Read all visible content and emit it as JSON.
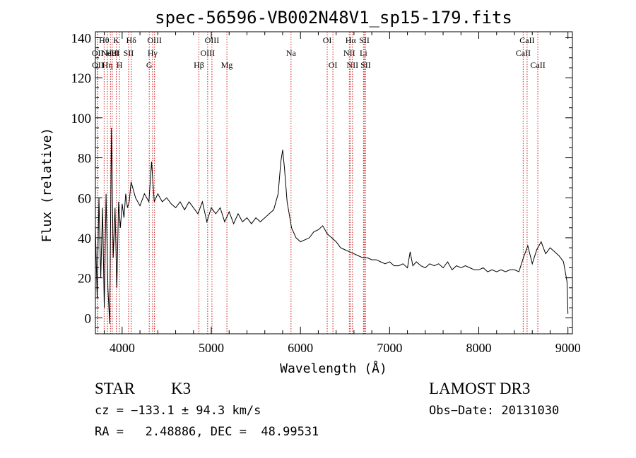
{
  "chart_data": {
    "type": "line",
    "title": "spec-56596-VB002N48V1_sp15-179.fits",
    "xlabel": "Wavelength (Å)",
    "ylabel": "Flux (relative)",
    "xlim": [
      3700,
      9050
    ],
    "ylim": [
      -8,
      143
    ],
    "x_ticks": [
      4000,
      5000,
      6000,
      7000,
      8000,
      9000
    ],
    "y_ticks": [
      0,
      20,
      40,
      60,
      80,
      100,
      120,
      140
    ],
    "grid": false,
    "series": [
      {
        "name": "flux",
        "x": [
          3700,
          3720,
          3740,
          3760,
          3780,
          3800,
          3820,
          3840,
          3860,
          3880,
          3900,
          3920,
          3940,
          3960,
          3980,
          4000,
          4020,
          4040,
          4060,
          4080,
          4100,
          4150,
          4200,
          4250,
          4300,
          4330,
          4360,
          4400,
          4450,
          4500,
          4550,
          4600,
          4650,
          4700,
          4750,
          4800,
          4850,
          4900,
          4950,
          5000,
          5050,
          5100,
          5150,
          5200,
          5250,
          5300,
          5350,
          5400,
          5450,
          5500,
          5550,
          5600,
          5650,
          5700,
          5750,
          5780,
          5800,
          5820,
          5850,
          5900,
          5950,
          6000,
          6050,
          6100,
          6150,
          6200,
          6250,
          6300,
          6350,
          6400,
          6450,
          6500,
          6550,
          6600,
          6650,
          6700,
          6750,
          6800,
          6850,
          6900,
          6950,
          7000,
          7050,
          7100,
          7150,
          7200,
          7230,
          7260,
          7300,
          7350,
          7400,
          7450,
          7500,
          7550,
          7600,
          7650,
          7700,
          7750,
          7800,
          7850,
          7900,
          7950,
          8000,
          8050,
          8100,
          8150,
          8200,
          8250,
          8300,
          8350,
          8400,
          8450,
          8500,
          8550,
          8600,
          8650,
          8700,
          8750,
          8800,
          8850,
          8900,
          8950,
          8990,
          9000
        ],
        "values": [
          45,
          10,
          60,
          20,
          55,
          5,
          62,
          15,
          -3,
          95,
          30,
          55,
          15,
          58,
          45,
          57,
          50,
          62,
          55,
          58,
          68,
          60,
          56,
          62,
          58,
          78,
          58,
          62,
          58,
          60,
          57,
          55,
          58,
          54,
          58,
          55,
          52,
          58,
          48,
          55,
          52,
          55,
          48,
          53,
          47,
          52,
          48,
          50,
          47,
          50,
          48,
          50,
          52,
          54,
          62,
          78,
          84,
          75,
          58,
          45,
          40,
          38,
          39,
          40,
          43,
          44,
          46,
          42,
          40,
          38,
          35,
          34,
          33,
          32,
          31,
          30,
          30,
          29,
          29,
          28,
          27,
          28,
          26,
          26,
          27,
          25,
          33,
          26,
          28,
          26,
          25,
          27,
          26,
          27,
          25,
          28,
          24,
          26,
          25,
          26,
          25,
          24,
          24,
          25,
          23,
          24,
          23,
          24,
          23,
          24,
          24,
          23,
          30,
          36,
          27,
          34,
          38,
          32,
          35,
          33,
          31,
          28,
          18,
          2
        ]
      }
    ],
    "line_features": [
      {
        "wavelength": 3725,
        "label": "OII",
        "row": 2
      },
      {
        "wavelength": 3727,
        "label": "OII",
        "row": 3
      },
      {
        "wavelength": 3798,
        "label": "Hθ",
        "row": 1
      },
      {
        "wavelength": 3835,
        "label": "Hη",
        "row": 3
      },
      {
        "wavelength": 3869,
        "label": "NeIII",
        "row": 2
      },
      {
        "wavelength": 3889,
        "label": "HeI",
        "row": 2
      },
      {
        "wavelength": 3934,
        "label": "K",
        "row": 1
      },
      {
        "wavelength": 3970,
        "label": "H",
        "row": 3
      },
      {
        "wavelength": 4072,
        "label": "SII",
        "row": 2
      },
      {
        "wavelength": 4102,
        "label": "Hδ",
        "row": 1
      },
      {
        "wavelength": 4304,
        "label": "G",
        "row": 3
      },
      {
        "wavelength": 4341,
        "label": "Hγ",
        "row": 2
      },
      {
        "wavelength": 4363,
        "label": "OIII",
        "row": 1
      },
      {
        "wavelength": 4861,
        "label": "Hβ",
        "row": 3
      },
      {
        "wavelength": 4959,
        "label": "OIII",
        "row": 2
      },
      {
        "wavelength": 5007,
        "label": "OIII",
        "row": 1
      },
      {
        "wavelength": 5175,
        "label": "Mg",
        "row": 3
      },
      {
        "wavelength": 5894,
        "label": "Na",
        "row": 2
      },
      {
        "wavelength": 6300,
        "label": "OI",
        "row": 1
      },
      {
        "wavelength": 6364,
        "label": "OI",
        "row": 3
      },
      {
        "wavelength": 6548,
        "label": "NII",
        "row": 2
      },
      {
        "wavelength": 6563,
        "label": "Hα",
        "row": 1
      },
      {
        "wavelength": 6583,
        "label": "NII",
        "row": 3
      },
      {
        "wavelength": 6707,
        "label": "Li",
        "row": 2
      },
      {
        "wavelength": 6716,
        "label": "SII",
        "row": 1
      },
      {
        "wavelength": 6731,
        "label": "SII",
        "row": 3
      },
      {
        "wavelength": 8498,
        "label": "CaII",
        "row": 2
      },
      {
        "wavelength": 8542,
        "label": "CaII",
        "row": 1
      },
      {
        "wavelength": 8662,
        "label": "CaII",
        "row": 3
      }
    ]
  },
  "footer": {
    "object_type": "STAR",
    "subclass": "K3",
    "survey": "LAMOST DR3",
    "cz": "cz = −133.1 ± 94.3 km/s",
    "obs_date": "Obs−Date: 20131030",
    "coords": "RA =   2.48886, DEC =  48.99531"
  }
}
